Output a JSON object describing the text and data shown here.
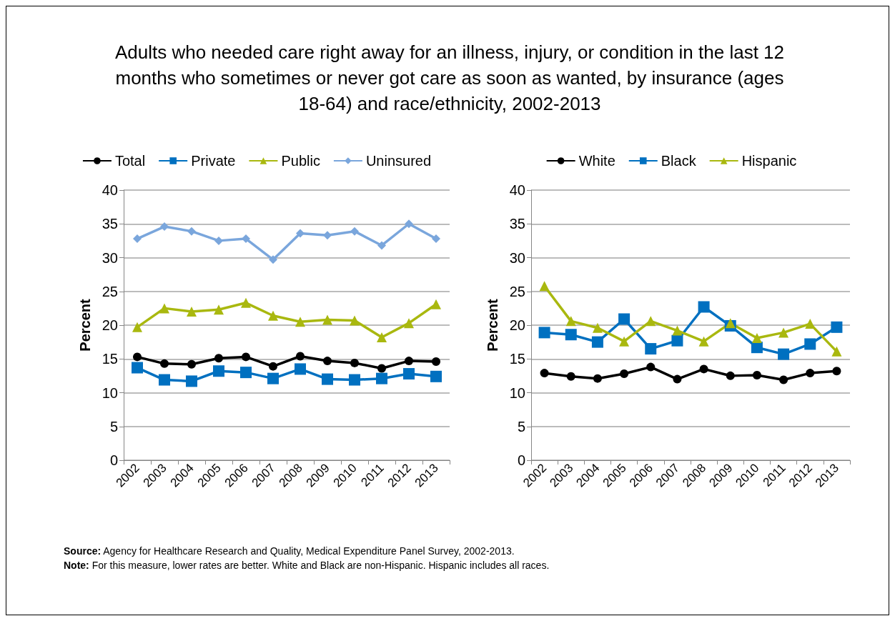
{
  "chart_data": [
    {
      "type": "line",
      "title": "Adults who needed care right away for an illness, injury, or condition in the last 12 months who sometimes or never got care as soon as wanted, by insurance (ages 18-64) and  race/ethnicity, 2002-2013",
      "ylabel": "Percent",
      "categories": [
        "2002",
        "2003",
        "2004",
        "2005",
        "2006",
        "2007",
        "2008",
        "2009",
        "2010",
        "2011",
        "2012",
        "2013"
      ],
      "series": [
        {
          "name": "Total",
          "color": "#000000",
          "marker": "circle",
          "values": [
            15.3,
            14.3,
            14.2,
            15.1,
            15.3,
            13.9,
            15.4,
            14.7,
            14.4,
            13.6,
            14.7,
            14.6
          ]
        },
        {
          "name": "Private",
          "color": "#0070c0",
          "marker": "square",
          "values": [
            13.7,
            11.9,
            11.7,
            13.2,
            13.0,
            12.1,
            13.5,
            12.0,
            11.9,
            12.1,
            12.8,
            12.4
          ]
        },
        {
          "name": "Public",
          "color": "#a9b80f",
          "marker": "triangle",
          "values": [
            19.7,
            22.5,
            22.0,
            22.3,
            23.3,
            21.4,
            20.5,
            20.8,
            20.7,
            18.2,
            20.3,
            23.1
          ]
        },
        {
          "name": "Uninsured",
          "color": "#7aa6dc",
          "marker": "diamond",
          "values": [
            32.8,
            34.6,
            33.9,
            32.5,
            32.8,
            29.7,
            33.6,
            33.3,
            33.9,
            31.8,
            35.0,
            32.8
          ]
        }
      ],
      "ylim": [
        0,
        40
      ],
      "yticks": [
        0,
        5,
        10,
        15,
        20,
        25,
        30,
        35,
        40
      ],
      "grid": "y",
      "legend": "top",
      "annotations": [
        "Source: Agency for Healthcare Research and Quality, Medical Expenditure Panel Survey,  2002-2013.",
        "Note: For this measure, lower rates are better. White and Black are non-Hispanic. Hispanic includes all races."
      ]
    },
    {
      "type": "line",
      "ylabel": "Percent",
      "categories": [
        "2002",
        "2003",
        "2004",
        "2005",
        "2006",
        "2007",
        "2008",
        "2009",
        "2010",
        "2011",
        "2012",
        "2013"
      ],
      "series": [
        {
          "name": "White",
          "color": "#000000",
          "marker": "circle",
          "values": [
            12.9,
            12.4,
            12.1,
            12.8,
            13.8,
            12.0,
            13.5,
            12.5,
            12.6,
            11.9,
            12.9,
            13.2
          ]
        },
        {
          "name": "Black",
          "color": "#0070c0",
          "marker": "square",
          "values": [
            18.9,
            18.6,
            17.5,
            20.9,
            16.5,
            17.7,
            22.7,
            19.9,
            16.7,
            15.7,
            17.2,
            19.7
          ]
        },
        {
          "name": "Hispanic",
          "color": "#a9b80f",
          "marker": "triangle",
          "values": [
            25.8,
            20.6,
            19.6,
            17.6,
            20.6,
            19.2,
            17.6,
            20.3,
            18.1,
            18.9,
            20.2,
            16.1
          ]
        }
      ],
      "ylim": [
        0,
        40
      ],
      "yticks": [
        0,
        5,
        10,
        15,
        20,
        25,
        30,
        35,
        40
      ],
      "grid": "y",
      "legend": "top"
    }
  ]
}
